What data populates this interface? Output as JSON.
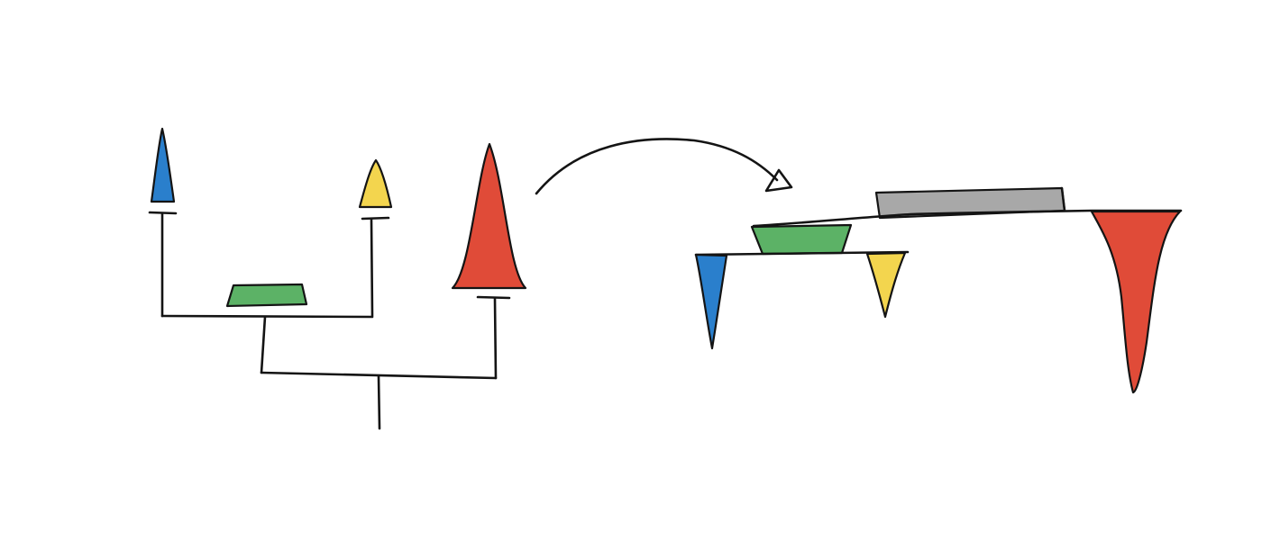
{
  "colors": {
    "blue": "#2a7fcc",
    "yellow": "#f3d54e",
    "red": "#e04b38",
    "green": "#5cb266",
    "gray": "#a8a8a8",
    "ink": "#141414",
    "background": "#ffffff"
  },
  "left_tree": {
    "leaves": [
      "blue",
      "yellow",
      "red"
    ],
    "internal_nodes": [
      "green"
    ]
  },
  "right_tree": {
    "leaves": [
      "blue",
      "yellow",
      "red"
    ],
    "internal_nodes": [
      "green",
      "gray"
    ]
  }
}
